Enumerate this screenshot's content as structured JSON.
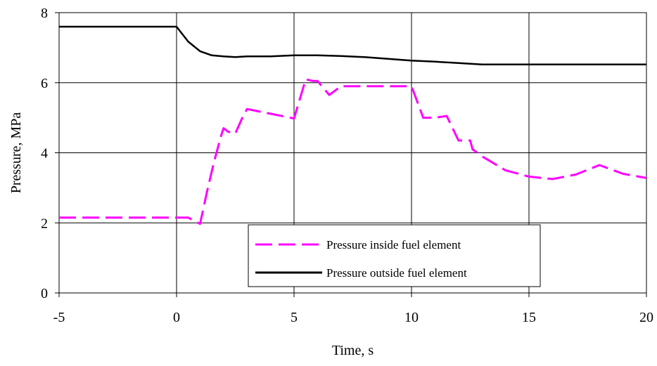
{
  "chart_data": {
    "type": "line",
    "title": "",
    "xlabel": "Time, s",
    "ylabel": "Pressure, MPa",
    "xlim": [
      -5,
      20
    ],
    "ylim": [
      0,
      8
    ],
    "x_ticks": [
      -5,
      0,
      5,
      10,
      15,
      20
    ],
    "y_ticks": [
      0,
      2,
      4,
      6,
      8
    ],
    "grid": true,
    "legend_position": "bottom-right",
    "series": [
      {
        "name": "Pressure inside fuel element",
        "color": "#ff00ff",
        "dash": "dashed",
        "x": [
          -5,
          0.5,
          1.0,
          1.3,
          1.6,
          1.9,
          2.0,
          2.2,
          2.5,
          2.8,
          3.0,
          5.0,
          5.5,
          5.8,
          6.0,
          6.5,
          7.0,
          7.5,
          10.0,
          10.5,
          11.0,
          11.5,
          12.0,
          12.5,
          12.6,
          13.0,
          14.0,
          15.0,
          16.0,
          17.0,
          18.0,
          19.0,
          20.0
        ],
        "y": [
          2.15,
          2.15,
          1.97,
          2.9,
          3.75,
          4.5,
          4.7,
          4.6,
          4.55,
          5.0,
          5.25,
          4.98,
          6.1,
          6.05,
          6.05,
          5.65,
          5.9,
          5.9,
          5.9,
          5.0,
          5.0,
          5.05,
          4.35,
          4.35,
          4.1,
          3.9,
          3.5,
          3.32,
          3.25,
          3.38,
          3.65,
          3.4,
          3.28
        ]
      },
      {
        "name": "Pressure outside fuel element",
        "color": "#000000",
        "dash": "solid",
        "x": [
          -5,
          0,
          0.5,
          1.0,
          1.5,
          2.0,
          2.5,
          3.0,
          4.0,
          5.0,
          6.0,
          7.0,
          8.0,
          9.0,
          10.0,
          11.0,
          12.0,
          13.0,
          15.0,
          20.0
        ],
        "y": [
          7.6,
          7.6,
          7.17,
          6.9,
          6.78,
          6.75,
          6.73,
          6.75,
          6.75,
          6.78,
          6.78,
          6.76,
          6.73,
          6.68,
          6.63,
          6.6,
          6.56,
          6.52,
          6.52,
          6.52
        ]
      }
    ]
  }
}
